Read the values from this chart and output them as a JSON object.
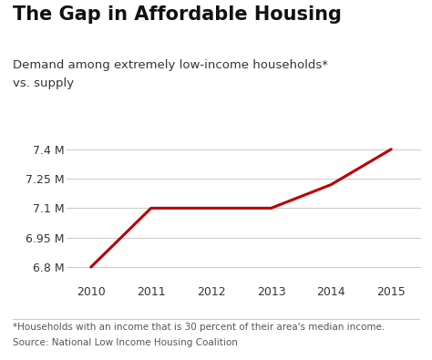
{
  "title": "The Gap in Affordable Housing",
  "subtitle_line1": "Demand among extremely low-income households*",
  "subtitle_line2": "vs. supply",
  "x_values": [
    2010,
    2011,
    2012,
    2013,
    2014,
    2015
  ],
  "y_values": [
    6.8,
    7.1,
    7.1,
    7.1,
    7.22,
    7.4
  ],
  "line_color": "#bb0000",
  "line_width": 2.2,
  "background_color": "#ffffff",
  "ytick_labels": [
    "6.8 M",
    "6.95 M",
    "7.1 M",
    "7.25 M",
    "7.4 M"
  ],
  "ytick_values": [
    6.8,
    6.95,
    7.1,
    7.25,
    7.4
  ],
  "ylim": [
    6.73,
    7.5
  ],
  "xlim": [
    2009.6,
    2015.5
  ],
  "xtick_values": [
    2010,
    2011,
    2012,
    2013,
    2014,
    2015
  ],
  "footnote1": "*Households with an income that is 30 percent of their area's median income.",
  "footnote2": "Source: National Low Income Housing Coalition",
  "title_fontsize": 15,
  "subtitle_fontsize": 9.5,
  "tick_fontsize": 9,
  "footnote_fontsize": 7.5,
  "grid_color": "#cccccc",
  "text_color": "#333333",
  "footnote_color": "#555555",
  "separator_color": "#cccccc"
}
